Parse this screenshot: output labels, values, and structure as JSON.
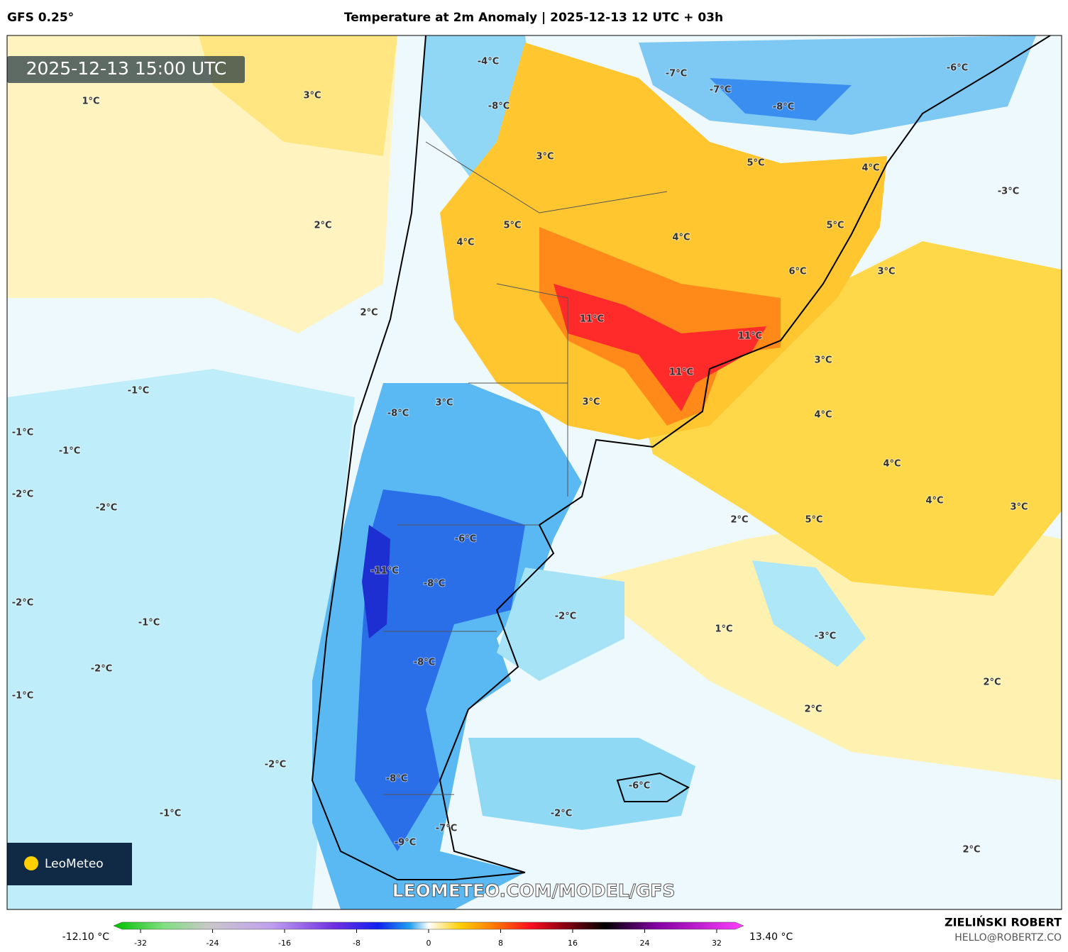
{
  "header": {
    "model": "GFS 0.25°",
    "title": "Temperature at 2m Anomaly | 2025-12-13 12 UTC + 03h"
  },
  "map": {
    "timestamp": "2025-12-13 15:00 UTC",
    "watermark": "LEOMETEO.COM/MODEL/GFS",
    "logo": "LeoMeteo",
    "labels": [
      "1°C",
      "3°C",
      "2°C",
      "2°C",
      "-1°C",
      "-1°C",
      "-1°C",
      "-2°C",
      "-2°C",
      "-2°C",
      "-1°C",
      "-2°C",
      "-1°C",
      "-2°C",
      "-1°C",
      "-4°C",
      "-8°C",
      "3°C",
      "5°C",
      "4°C",
      "-7°C",
      "-7°C",
      "-8°C",
      "-6°C",
      "5°C",
      "4°C",
      "-3°C",
      "4°C",
      "5°C",
      "6°C",
      "3°C",
      "11°C",
      "11°C",
      "11°C",
      "3°C",
      "-8°C",
      "3°C",
      "3°C",
      "4°C",
      "4°C",
      "4°C",
      "3°C",
      "5°C",
      "2°C",
      "-6°C",
      "-11°C",
      "-8°C",
      "-2°C",
      "1°C",
      "-3°C",
      "-8°C",
      "2°C",
      "2°C",
      "-8°C",
      "-6°C",
      "-2°C",
      "-7°C",
      "-9°C",
      "2°C"
    ]
  },
  "colorbar": {
    "min_label": "-12.10 °C",
    "max_label": "13.40 °C",
    "range": [
      -35,
      35
    ],
    "ticks": [
      -32,
      -24,
      -16,
      -8,
      0,
      8,
      16,
      24,
      32
    ]
  },
  "footer": {
    "author": "ZIELIŃSKI ROBERT",
    "email": "HELLO@ROBERTZ.CO"
  }
}
